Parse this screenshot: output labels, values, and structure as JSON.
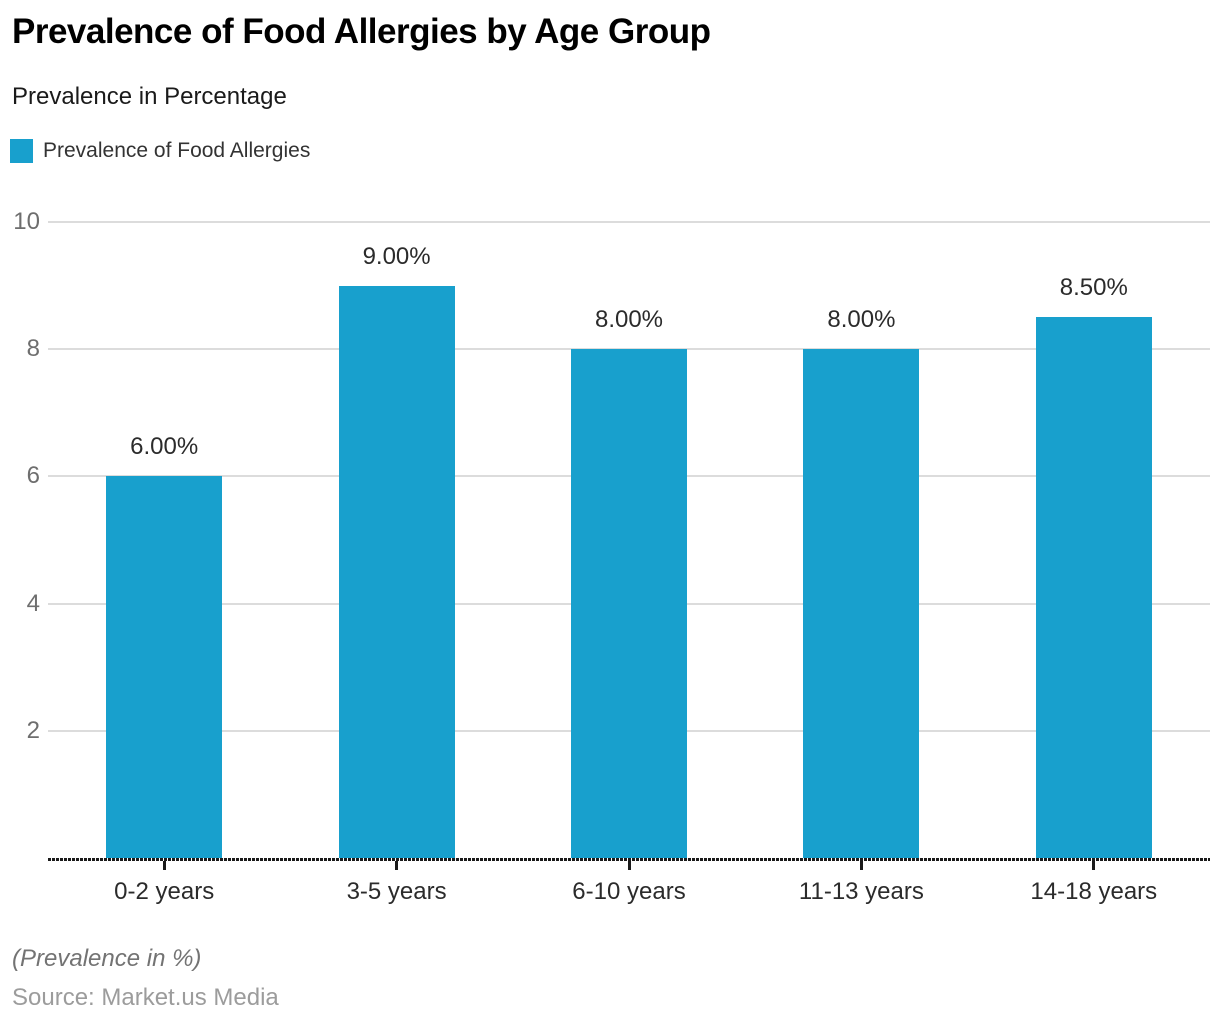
{
  "header": {
    "title": "Prevalence of Food Allergies by Age Group",
    "subtitle": "Prevalence in Percentage"
  },
  "legend": {
    "label": "Prevalence of Food Allergies",
    "swatch_color": "#18a0cd"
  },
  "chart_data": {
    "type": "bar",
    "title": "Prevalence of Food Allergies by Age Group",
    "subtitle": "Prevalence in Percentage",
    "categories": [
      "0-2 years",
      "3-5 years",
      "6-10 years",
      "11-13 years",
      "14-18 years"
    ],
    "series": [
      {
        "name": "Prevalence of Food Allergies",
        "values": [
          6.0,
          9.0,
          8.0,
          8.0,
          8.5
        ],
        "value_labels": [
          "6.00%",
          "9.00%",
          "8.00%",
          "8.00%",
          "8.50%"
        ],
        "color": "#18a0cd"
      }
    ],
    "xlabel": "",
    "ylabel": "Prevalence in Percentage",
    "ylim": [
      0,
      10
    ],
    "yticks": [
      2,
      4,
      6,
      8,
      10
    ],
    "grid": "horizontal",
    "gridline_color": "#dcdcdc",
    "legend_position": "top-left"
  },
  "footer": {
    "note": "(Prevalence in %)",
    "source": "Source: Market.us Media"
  }
}
